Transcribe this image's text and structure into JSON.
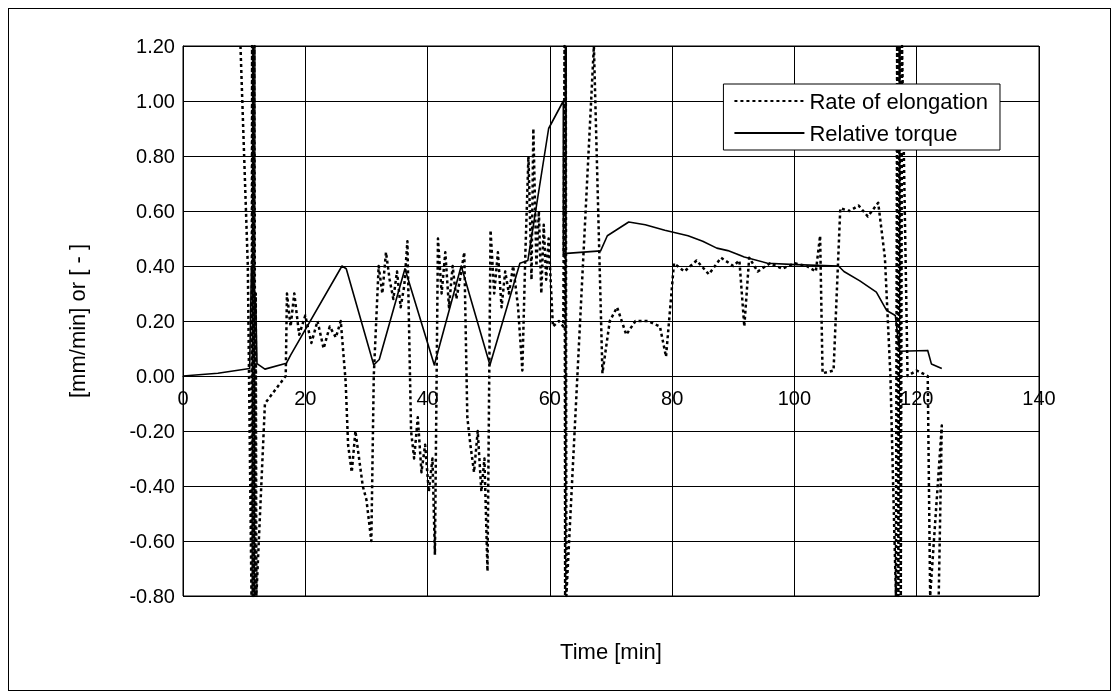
{
  "chart_data": {
    "type": "line",
    "xlabel": "Time [min]",
    "ylabel": "[mm/min] or [ - ]",
    "xlim": [
      0,
      140
    ],
    "xticks": [
      0,
      20,
      40,
      60,
      80,
      100,
      120,
      140
    ],
    "ylim": [
      -0.8,
      1.2
    ],
    "yticks": [
      {
        "value": -0.8,
        "label": "-0.80"
      },
      {
        "value": -0.6,
        "label": "-0.60"
      },
      {
        "value": -0.4,
        "label": "-0.40"
      },
      {
        "value": -0.2,
        "label": "-0.20"
      },
      {
        "value": 0,
        "label": "0.00"
      },
      {
        "value": 0.2,
        "label": "0.20"
      },
      {
        "value": 0.4,
        "label": "0.40"
      },
      {
        "value": 0.6,
        "label": "0.60"
      },
      {
        "value": 0.8,
        "label": "0.80"
      },
      {
        "value": 1.0,
        "label": "1.00"
      },
      {
        "value": 1.2,
        "label": "1.20"
      }
    ],
    "grid": true,
    "legend": "top right",
    "marker": "none",
    "series": [
      {
        "name": "Rate of elongation",
        "color": "#000000",
        "line_style": "dotted",
        "x": [
          9.4,
          10.6,
          11.2,
          11.3,
          11.4,
          11.5,
          11.6,
          11.7,
          11.8,
          11.9,
          12.0,
          13.4,
          16.8,
          17.0,
          17.6,
          18.2,
          19.0,
          20.0,
          21.0,
          22.0,
          23.0,
          24.0,
          25.0,
          25.8,
          26.6,
          27.0,
          27.6,
          28.2,
          28.8,
          29.4,
          30.0,
          30.8,
          31.2,
          32.0,
          32.6,
          33.2,
          33.8,
          34.4,
          35.0,
          35.6,
          36.2,
          36.7,
          37.3,
          37.8,
          38.4,
          39.0,
          39.6,
          40.2,
          40.8,
          41.2,
          41.7,
          42.3,
          42.9,
          43.5,
          44.1,
          44.7,
          45.3,
          46.0,
          46.5,
          47.0,
          47.6,
          48.2,
          48.8,
          49.3,
          49.8,
          50.3,
          50.9,
          51.5,
          52.1,
          52.7,
          53.3,
          54.0,
          54.8,
          55.5,
          56.0,
          56.5,
          57.0,
          57.3,
          57.8,
          58.2,
          58.6,
          59.0,
          59.4,
          59.8,
          60.5,
          61.5,
          62.2,
          62.4,
          62.5,
          62.6,
          62.7,
          67.2,
          68.6,
          69.8,
          71.0,
          72.5,
          74.0,
          76.0,
          78.0,
          79.0,
          80.3,
          82.0,
          84.0,
          86.0,
          88.0,
          90.0,
          91.0,
          91.8,
          92.6,
          94.0,
          96.0,
          98.0,
          100.0,
          102.0,
          103.5,
          104.2,
          104.6,
          106.4,
          107.5,
          109.0,
          110.5,
          112.0,
          113.7,
          114.8,
          115.7,
          116.6,
          116.8,
          117.0,
          117.2,
          117.4,
          117.6,
          118.5,
          120.0,
          121.8,
          122.2,
          124.1,
          123.6
        ],
        "values": [
          1.2,
          0.4,
          -0.8,
          1.2,
          -0.8,
          1.2,
          -0.8,
          1.2,
          -0.8,
          0.3,
          -0.8,
          -0.1,
          0.0,
          0.3,
          0.18,
          0.3,
          0.15,
          0.22,
          0.12,
          0.2,
          0.1,
          0.18,
          0.14,
          0.2,
          -0.02,
          -0.25,
          -0.35,
          -0.2,
          -0.3,
          -0.4,
          -0.45,
          -0.6,
          0.0,
          0.4,
          0.3,
          0.45,
          0.35,
          0.28,
          0.38,
          0.25,
          0.33,
          0.49,
          -0.2,
          -0.3,
          -0.15,
          -0.35,
          -0.25,
          -0.42,
          -0.3,
          -0.65,
          0.5,
          0.3,
          0.45,
          0.25,
          0.4,
          0.28,
          0.35,
          0.45,
          -0.15,
          -0.25,
          -0.35,
          -0.2,
          -0.42,
          -0.3,
          -0.71,
          0.53,
          0.3,
          0.45,
          0.25,
          0.38,
          0.3,
          0.4,
          0.25,
          0.02,
          0.45,
          0.8,
          0.35,
          0.9,
          0.4,
          0.6,
          0.3,
          0.55,
          0.35,
          0.5,
          0.18,
          0.2,
          0.18,
          1.2,
          -0.8,
          1.2,
          -0.8,
          1.2,
          0.01,
          0.2,
          0.25,
          0.15,
          0.2,
          0.2,
          0.18,
          0.07,
          0.41,
          0.38,
          0.42,
          0.37,
          0.43,
          0.4,
          0.42,
          0.18,
          0.43,
          0.38,
          0.41,
          0.39,
          0.41,
          0.4,
          0.38,
          0.51,
          0.01,
          0.02,
          0.61,
          0.6,
          0.62,
          0.58,
          0.63,
          0.43,
          0.0,
          -0.8,
          1.2,
          -0.8,
          1.2,
          -0.8,
          1.2,
          0.0,
          0.02,
          0.0,
          -0.8,
          -0.18,
          -0.8
        ]
      },
      {
        "name": "Relative torque",
        "color": "#000000",
        "line_style": "solid",
        "x": [
          0,
          5.7,
          10.9,
          11.2,
          11.9,
          12.1,
          13.4,
          16.9,
          17.6,
          26.0,
          26.7,
          31.2,
          32.1,
          36.3,
          41.1,
          45.5,
          50.2,
          55.1,
          56.4,
          59.8,
          62.2,
          62.2,
          68.3,
          69.4,
          72.9,
          75.6,
          78.8,
          82.6,
          85.0,
          87.3,
          89.1,
          91.8,
          95.6,
          100.2,
          107.2,
          108.1,
          110.7,
          113.4,
          115.1,
          116.5,
          117.2,
          121.8,
          122.4,
          124.1
        ],
        "values": [
          0,
          0.01,
          0.027,
          0.4,
          0.26,
          0.045,
          0.025,
          0.046,
          0.076,
          0.4,
          0.39,
          0.04,
          0.06,
          0.39,
          0.04,
          0.4,
          0.04,
          0.41,
          0.42,
          0.9,
          1.0,
          0.445,
          0.455,
          0.51,
          0.56,
          0.55,
          0.53,
          0.51,
          0.49,
          0.465,
          0.456,
          0.433,
          0.41,
          0.405,
          0.4,
          0.38,
          0.346,
          0.305,
          0.238,
          0.22,
          0.09,
          0.093,
          0.044,
          0.027
        ]
      }
    ]
  }
}
